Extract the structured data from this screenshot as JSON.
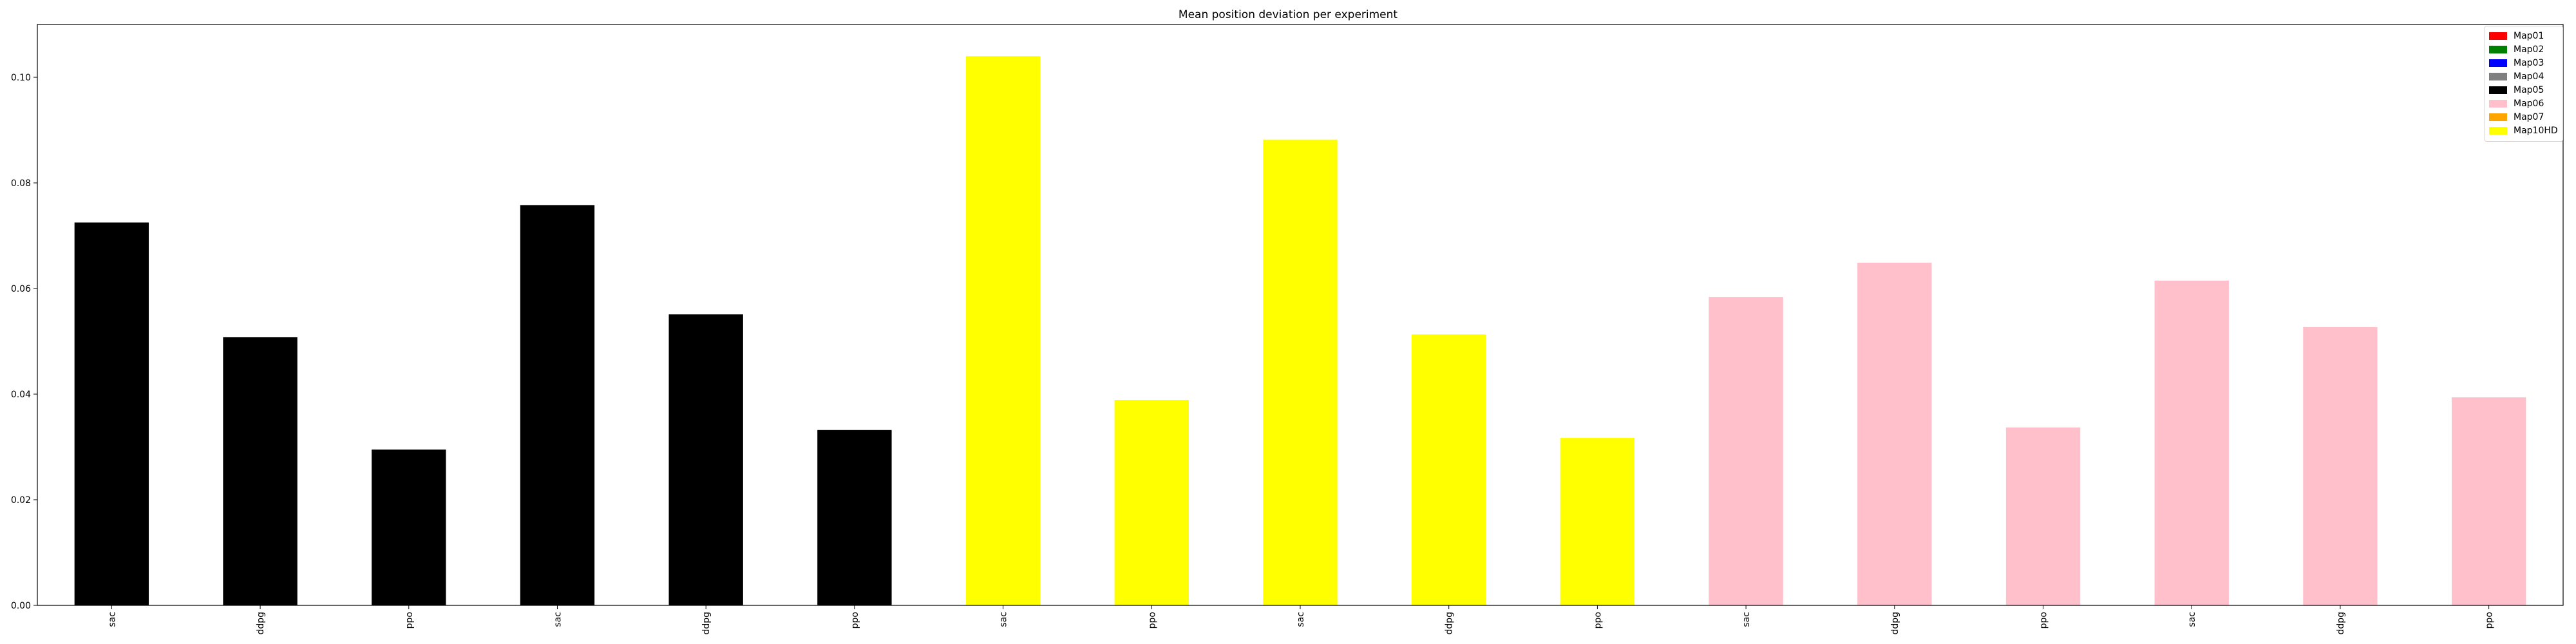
{
  "chart_data": {
    "type": "bar",
    "title": "Mean position deviation per experiment",
    "xlabel": "",
    "ylabel": "",
    "ylim": [
      0,
      0.11
    ],
    "yticks": [
      0.0,
      0.02,
      0.04,
      0.06,
      0.08,
      0.1
    ],
    "ytick_labels": [
      "0.00",
      "0.02",
      "0.04",
      "0.06",
      "0.08",
      "0.10"
    ],
    "categories": [
      "sac",
      "ddpg",
      "ppo",
      "sac",
      "ddpg",
      "ppo",
      "sac",
      "ppo",
      "sac",
      "ddpg",
      "ppo",
      "sac",
      "ddpg",
      "ppo",
      "sac",
      "ddpg",
      "ppo"
    ],
    "values": [
      0.0725,
      0.0508,
      0.0295,
      0.0758,
      0.0551,
      0.0332,
      0.104,
      0.0389,
      0.0882,
      0.0513,
      0.0317,
      0.0584,
      0.0649,
      0.0337,
      0.0615,
      0.0527,
      0.0394
    ],
    "bar_colors": [
      "#000000",
      "#000000",
      "#000000",
      "#000000",
      "#000000",
      "#000000",
      "#ffff00",
      "#ffff00",
      "#ffff00",
      "#ffff00",
      "#ffff00",
      "#ffc0cb",
      "#ffc0cb",
      "#ffc0cb",
      "#ffc0cb",
      "#ffc0cb",
      "#ffc0cb"
    ],
    "grid": false,
    "legend_position": "top-right",
    "legend": [
      {
        "label": "Map01",
        "color": "#ff0000"
      },
      {
        "label": "Map02",
        "color": "#008000"
      },
      {
        "label": "Map03",
        "color": "#0000ff"
      },
      {
        "label": "Map04",
        "color": "#808080"
      },
      {
        "label": "Map05",
        "color": "#000000"
      },
      {
        "label": "Map06",
        "color": "#ffc0cb"
      },
      {
        "label": "Map07",
        "color": "#ffa500"
      },
      {
        "label": "Map10HD",
        "color": "#ffff00"
      }
    ]
  }
}
